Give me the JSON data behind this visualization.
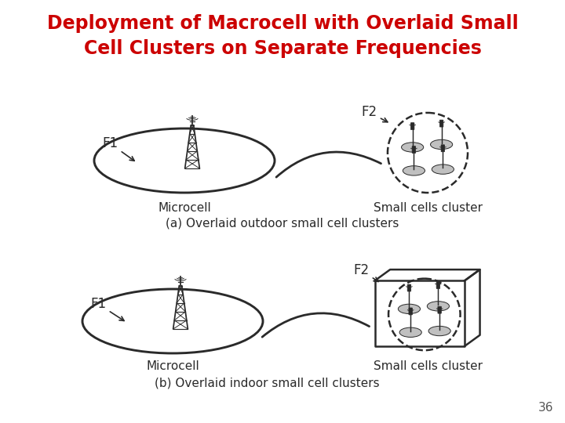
{
  "title_line1": "Deployment of Macrocell with Overlaid Small",
  "title_line2": "Cell Clusters on Separate Frequencies",
  "title_color": "#cc0000",
  "title_fontsize": 17,
  "bg_color": "#ffffff",
  "label_a": "(a) Overlaid outdoor small cell clusters",
  "label_b": "(b) Overlaid indoor small cell clusters",
  "microcell_label": "Microcell",
  "small_cells_label": "Small cells cluster",
  "f1_label": "F1",
  "f2_label": "F2",
  "page_number": "36",
  "diagram_color": "#2a2a2a",
  "fill_color": "#c0c0c0",
  "lw_main": 1.8,
  "lw_thin": 1.0,
  "lw_tower": 1.2
}
